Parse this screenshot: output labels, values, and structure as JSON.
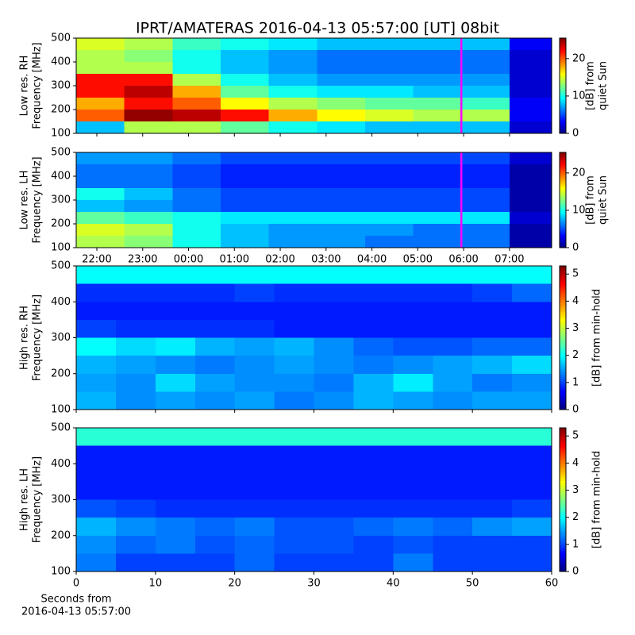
{
  "title": "IPRT/AMATERAS 2016-04-13 05:57:00 [UT]   08bit",
  "chart_data": [
    {
      "type": "heatmap",
      "ylabel": [
        "Low res. RH",
        "Frequency [MHz]"
      ],
      "xlim": [
        -2.45,
        7.92
      ],
      "ylim": [
        100,
        500
      ],
      "yticks": [
        100,
        200,
        300,
        400,
        500
      ],
      "xbins": [
        -2.45,
        -1.4,
        -0.35,
        0.7,
        1.75,
        2.8,
        3.85,
        4.9,
        5.95,
        7,
        7.92
      ],
      "ybins": [
        100,
        150,
        200,
        250,
        300,
        350,
        400,
        450,
        500
      ],
      "values": [
        [
          8,
          14,
          14,
          12,
          10,
          9,
          8,
          8,
          8,
          2
        ],
        [
          20,
          25,
          24,
          22,
          18,
          16,
          15,
          14,
          14,
          3
        ],
        [
          18,
          22,
          20,
          16,
          14,
          13,
          12,
          12,
          11,
          3
        ],
        [
          22,
          24,
          18,
          12,
          10,
          9,
          9,
          8,
          8,
          2
        ],
        [
          22,
          22,
          14,
          10,
          8,
          7,
          7,
          7,
          7,
          2
        ],
        [
          14,
          14,
          10,
          8,
          7,
          6,
          6,
          6,
          6,
          2
        ],
        [
          14,
          13,
          10,
          8,
          7,
          6,
          6,
          6,
          6,
          2
        ],
        [
          15,
          14,
          11,
          10,
          9,
          8,
          8,
          8,
          8,
          3
        ]
      ],
      "clim": [
        0,
        25.5
      ],
      "cticks": [
        0,
        10,
        20
      ],
      "colorbar_label": [
        "[dB] from",
        "quiet Sun"
      ],
      "vline": 5.95,
      "vline_color": "#ff00ff"
    },
    {
      "type": "heatmap",
      "ylabel": [
        "Low res. LH",
        "Frequency [MHz]"
      ],
      "xlim": [
        -2.45,
        7.92
      ],
      "ylim": [
        100,
        500
      ],
      "yticks": [
        100,
        200,
        300,
        400,
        500
      ],
      "xticks": [
        {
          "value": -2,
          "label": "22:00"
        },
        {
          "value": -1,
          "label": "23:00"
        },
        {
          "value": 0,
          "label": "00:00"
        },
        {
          "value": 1,
          "label": "01:00"
        },
        {
          "value": 2,
          "label": "02:00"
        },
        {
          "value": 3,
          "label": "03:00"
        },
        {
          "value": 4,
          "label": "04:00"
        },
        {
          "value": 5,
          "label": "05:00"
        },
        {
          "value": 6,
          "label": "06:00"
        },
        {
          "value": 7,
          "label": "07:00"
        }
      ],
      "xbins": [
        -2.45,
        -1.4,
        -0.35,
        0.7,
        1.75,
        2.8,
        3.85,
        4.9,
        5.95,
        7,
        7.92
      ],
      "ybins": [
        100,
        150,
        200,
        250,
        300,
        350,
        400,
        450,
        500
      ],
      "values": [
        [
          14,
          13,
          10,
          8,
          7,
          7,
          6,
          6,
          6,
          1
        ],
        [
          15,
          14,
          10,
          8,
          7,
          7,
          7,
          6,
          6,
          1
        ],
        [
          12,
          11,
          10,
          9,
          9,
          9,
          9,
          9,
          9,
          2
        ],
        [
          8,
          7,
          6,
          5,
          5,
          5,
          5,
          5,
          5,
          1
        ],
        [
          10,
          8,
          6,
          5,
          5,
          5,
          5,
          5,
          5,
          1
        ],
        [
          6,
          6,
          5,
          4,
          4,
          4,
          4,
          4,
          4,
          1
        ],
        [
          6,
          6,
          5,
          4,
          4,
          4,
          4,
          4,
          4,
          1
        ],
        [
          7,
          7,
          6,
          5,
          5,
          5,
          5,
          5,
          5,
          2
        ]
      ],
      "clim": [
        0,
        25.5
      ],
      "cticks": [
        0,
        10,
        20
      ],
      "colorbar_label": [
        "[dB] from",
        "quiet Sun"
      ],
      "vline": 5.95,
      "vline_color": "#ff00ff"
    },
    {
      "type": "heatmap",
      "ylabel": [
        "High res. RH",
        "Frequency [MHz]"
      ],
      "xlim": [
        0,
        60
      ],
      "ylim": [
        100,
        500
      ],
      "yticks": [
        100,
        200,
        300,
        400,
        500
      ],
      "xbins": [
        0,
        5,
        10,
        15,
        20,
        25,
        30,
        35,
        40,
        45,
        50,
        55,
        60
      ],
      "ybins": [
        100,
        150,
        200,
        250,
        300,
        350,
        400,
        450,
        500
      ],
      "values": [
        [
          1.6,
          1.4,
          1.5,
          1.4,
          1.5,
          1.3,
          1.4,
          1.6,
          1.5,
          1.4,
          1.5,
          1.5
        ],
        [
          1.5,
          1.4,
          1.8,
          1.5,
          1.4,
          1.4,
          1.3,
          1.6,
          1.9,
          1.5,
          1.3,
          1.4
        ],
        [
          1.6,
          1.5,
          1.4,
          1.3,
          1.4,
          1.5,
          1.4,
          1.3,
          1.4,
          1.5,
          1.6,
          1.8
        ],
        [
          2.0,
          1.8,
          1.9,
          1.6,
          1.5,
          1.6,
          1.4,
          1.2,
          1.1,
          1.1,
          1.2,
          1.2
        ],
        [
          1.0,
          0.9,
          0.9,
          0.9,
          0.9,
          0.8,
          0.8,
          0.8,
          0.8,
          0.8,
          0.8,
          0.8
        ],
        [
          0.8,
          0.8,
          0.8,
          0.8,
          0.8,
          0.8,
          0.8,
          0.8,
          0.8,
          0.8,
          0.8,
          0.8
        ],
        [
          0.9,
          0.9,
          0.9,
          0.9,
          1.0,
          0.9,
          0.9,
          0.9,
          0.9,
          0.9,
          1.0,
          1.2
        ],
        [
          2.0,
          2.0,
          2.0,
          2.0,
          2.0,
          2.0,
          2.0,
          2.0,
          2.0,
          2.0,
          2.0,
          2.0
        ]
      ],
      "clim": [
        0,
        5.3
      ],
      "cticks": [
        0,
        1,
        2,
        3,
        4,
        5
      ],
      "colorbar_label": [
        "[dB] from min-hold"
      ]
    },
    {
      "type": "heatmap",
      "ylabel": [
        "High res. LH",
        "Frequency [MHz]"
      ],
      "xlim": [
        0,
        60
      ],
      "ylim": [
        100,
        500
      ],
      "yticks": [
        100,
        200,
        300,
        400,
        500
      ],
      "xticks": [
        0,
        10,
        20,
        30,
        40,
        50,
        60
      ],
      "xlabel": [
        "Seconds from",
        "2016-04-13 05:57:00"
      ],
      "xbins": [
        0,
        5,
        10,
        15,
        20,
        25,
        30,
        35,
        40,
        45,
        50,
        55,
        60
      ],
      "ybins": [
        100,
        150,
        200,
        250,
        300,
        350,
        400,
        450,
        500
      ],
      "values": [
        [
          1.3,
          1.0,
          1.0,
          1.0,
          1.2,
          1.0,
          1.0,
          1.0,
          1.3,
          1.0,
          1.0,
          1.0
        ],
        [
          1.4,
          1.2,
          1.3,
          1.1,
          1.2,
          1.1,
          1.1,
          1.0,
          1.1,
          1.0,
          1.0,
          1.0
        ],
        [
          1.6,
          1.4,
          1.3,
          1.2,
          1.3,
          1.1,
          1.1,
          1.2,
          1.3,
          1.2,
          1.4,
          1.5
        ],
        [
          1.1,
          1.0,
          0.9,
          0.9,
          0.9,
          0.9,
          0.9,
          0.9,
          0.9,
          0.9,
          0.9,
          1.0
        ],
        [
          0.8,
          0.8,
          0.8,
          0.8,
          0.8,
          0.8,
          0.8,
          0.8,
          0.8,
          0.8,
          0.8,
          0.8
        ],
        [
          0.8,
          0.8,
          0.8,
          0.8,
          0.8,
          0.8,
          0.8,
          0.8,
          0.8,
          0.8,
          0.8,
          0.8
        ],
        [
          0.8,
          0.8,
          0.8,
          0.8,
          0.8,
          0.8,
          0.8,
          0.8,
          0.8,
          0.8,
          0.8,
          0.8
        ],
        [
          2.2,
          2.2,
          2.2,
          2.2,
          2.2,
          2.2,
          2.2,
          2.2,
          2.2,
          2.2,
          2.2,
          2.2
        ]
      ],
      "clim": [
        0,
        5.3
      ],
      "cticks": [
        0,
        1,
        2,
        3,
        4,
        5
      ],
      "colorbar_label": [
        "[dB] from min-hold"
      ]
    }
  ]
}
